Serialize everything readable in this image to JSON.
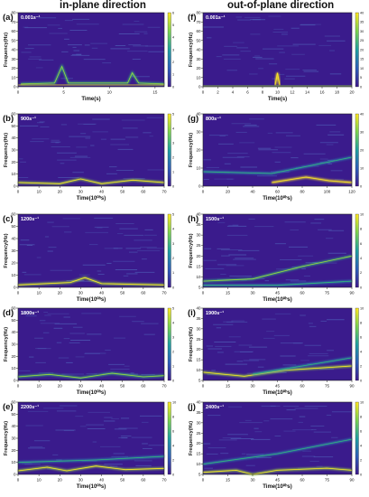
{
  "headers": {
    "left": "in-plane direction",
    "right": "out-of-plane direction"
  },
  "colors": {
    "background": "#3a1b8c",
    "low": "#440154",
    "mid": "#21908d",
    "high": "#fde725"
  },
  "chart_data": [
    {
      "id": "a",
      "type": "heatmap",
      "panel_label": "(a)",
      "annotation": "0.001s⁻¹",
      "xlabel": "Time(s)",
      "ylabel": "Frequency(Hz)",
      "xlim": [
        0,
        16
      ],
      "ylim": [
        0,
        80
      ],
      "xticks": [
        "0",
        "5",
        "10",
        "15"
      ],
      "yticks": [
        "0",
        "10",
        "20",
        "30",
        "40",
        "50",
        "60",
        "70",
        "80"
      ],
      "colorbar_ticks": [
        "0",
        "1",
        "2",
        "3",
        "4",
        "5",
        "6"
      ],
      "ridges": [
        {
          "points": [
            [
              0.3,
              3
            ],
            [
              4,
              4
            ],
            [
              4.8,
              22
            ],
            [
              5.5,
              4
            ],
            [
              12,
              4
            ],
            [
              12.5,
              15
            ],
            [
              13.2,
              4
            ],
            [
              16,
              3
            ]
          ],
          "level": 0.55
        },
        {
          "points": [
            [
              0,
              2
            ],
            [
              16,
              2
            ]
          ],
          "level": 0.9
        }
      ]
    },
    {
      "id": "f",
      "type": "heatmap",
      "panel_label": "(f)",
      "annotation": "0.001s⁻¹",
      "xlabel": "Time(s)",
      "ylabel": "Frequency(Hz)",
      "xlim": [
        0,
        20
      ],
      "ylim": [
        0,
        80
      ],
      "xticks": [
        "0",
        "2",
        "4",
        "6",
        "8",
        "10",
        "12",
        "14",
        "16",
        "18",
        "20"
      ],
      "yticks": [
        "0",
        "10",
        "20",
        "30",
        "40",
        "50",
        "60",
        "70",
        "80"
      ],
      "colorbar_ticks": [
        "0",
        "5",
        "10",
        "15",
        "20",
        "25",
        "30",
        "35",
        "40"
      ],
      "ridges": [
        {
          "points": [
            [
              9.7,
              2
            ],
            [
              10,
              15
            ],
            [
              10.3,
              2
            ]
          ],
          "level": 1.0
        },
        {
          "points": [
            [
              0,
              1
            ],
            [
              20,
              1
            ]
          ],
          "level": 0.5
        }
      ]
    },
    {
      "id": "b",
      "type": "heatmap",
      "panel_label": "(b)",
      "annotation": "900s⁻¹",
      "xlabel": "Time(10⁰ʰs)",
      "ylabel": "Frequency(Hz)",
      "xlim": [
        0,
        70
      ],
      "ylim": [
        0,
        60
      ],
      "xticks": [
        "0",
        "10",
        "20",
        "30",
        "40",
        "50",
        "60",
        "70"
      ],
      "yticks": [
        "0",
        "10",
        "20",
        "30",
        "40",
        "50",
        "60"
      ],
      "colorbar_ticks": [
        "0",
        "1",
        "2",
        "3",
        "4",
        "5"
      ],
      "ridges": [
        {
          "points": [
            [
              0,
              3
            ],
            [
              20,
              2
            ],
            [
              30,
              6
            ],
            [
              40,
              2
            ],
            [
              55,
              5
            ],
            [
              70,
              3
            ]
          ],
          "level": 0.75
        }
      ]
    },
    {
      "id": "g",
      "type": "heatmap",
      "panel_label": "(g)",
      "annotation": "800s⁻¹",
      "xlabel": "Time(10⁰ʰs)",
      "ylabel": "Frequency(Hz)",
      "xlim": [
        0,
        130
      ],
      "ylim": [
        0,
        40
      ],
      "xticks": [
        "0",
        "20",
        "40",
        "60",
        "80",
        "100",
        "120"
      ],
      "yticks": [
        "0",
        "10",
        "20",
        "30",
        "40"
      ],
      "colorbar_ticks": [
        "0",
        "10",
        "20",
        "30",
        "40"
      ],
      "ridges": [
        {
          "points": [
            [
              60,
              2
            ],
            [
              90,
              5
            ],
            [
              110,
              3
            ],
            [
              130,
              2
            ]
          ],
          "level": 1.0
        },
        {
          "points": [
            [
              0,
              8
            ],
            [
              60,
              7
            ],
            [
              130,
              16
            ]
          ],
          "level": 0.45
        }
      ]
    },
    {
      "id": "c",
      "type": "heatmap",
      "panel_label": "(c)",
      "annotation": "1200s⁻¹",
      "xlabel": "Time(10⁰ʰs)",
      "ylabel": "Frequency(Hz)",
      "xlim": [
        0,
        70
      ],
      "ylim": [
        0,
        60
      ],
      "xticks": [
        "0",
        "10",
        "20",
        "30",
        "40",
        "50",
        "60",
        "70"
      ],
      "yticks": [
        "0",
        "10",
        "20",
        "30",
        "40",
        "50",
        "60"
      ],
      "colorbar_ticks": [
        "0",
        "1",
        "2",
        "3",
        "4",
        "5"
      ],
      "ridges": [
        {
          "points": [
            [
              0,
              2
            ],
            [
              25,
              4
            ],
            [
              32,
              8
            ],
            [
              40,
              3
            ],
            [
              70,
              2
            ]
          ],
          "level": 0.7
        }
      ]
    },
    {
      "id": "h",
      "type": "heatmap",
      "panel_label": "(h)",
      "annotation": "1500s⁻¹",
      "xlabel": "Time(10⁰ʰs)",
      "ylabel": "Frequency(Hz)",
      "xlim": [
        0,
        90
      ],
      "ylim": [
        5,
        40
      ],
      "xticks": [
        "0",
        "15",
        "30",
        "45",
        "60",
        "75",
        "90"
      ],
      "yticks": [
        "5",
        "10",
        "15",
        "20",
        "25",
        "30",
        "35",
        "40"
      ],
      "colorbar_ticks": [
        "0",
        "2",
        "4",
        "6",
        "8",
        "10"
      ],
      "ridges": [
        {
          "points": [
            [
              0,
              8
            ],
            [
              30,
              9
            ],
            [
              60,
              15
            ],
            [
              90,
              20
            ]
          ],
          "level": 0.5
        },
        {
          "points": [
            [
              0,
              6
            ],
            [
              45,
              6
            ],
            [
              90,
              8
            ]
          ],
          "level": 0.45
        }
      ]
    },
    {
      "id": "d",
      "type": "heatmap",
      "panel_label": "(d)",
      "annotation": "1800s⁻¹",
      "xlabel": "Time(10⁰ʰs)",
      "ylabel": "Frequency(Hz)",
      "xlim": [
        0,
        70
      ],
      "ylim": [
        0,
        60
      ],
      "xticks": [
        "0",
        "10",
        "20",
        "30",
        "40",
        "50",
        "60",
        "70"
      ],
      "yticks": [
        "0",
        "10",
        "20",
        "30",
        "40",
        "50",
        "60"
      ],
      "colorbar_ticks": [
        "0",
        "1",
        "2",
        "3",
        "4",
        "5"
      ],
      "ridges": [
        {
          "points": [
            [
              0,
              3
            ],
            [
              15,
              5
            ],
            [
              30,
              2
            ],
            [
              45,
              6
            ],
            [
              60,
              3
            ],
            [
              70,
              4
            ]
          ],
          "level": 0.6
        }
      ]
    },
    {
      "id": "i",
      "type": "heatmap",
      "panel_label": "(i)",
      "annotation": "1900s⁻¹",
      "xlabel": "Time(10⁰ʰs)",
      "ylabel": "Frequency(Hz)",
      "xlim": [
        0,
        90
      ],
      "ylim": [
        5,
        40
      ],
      "xticks": [
        "0",
        "15",
        "30",
        "45",
        "60",
        "75",
        "90"
      ],
      "yticks": [
        "5",
        "10",
        "15",
        "20",
        "25",
        "30",
        "35",
        "40"
      ],
      "colorbar_ticks": [
        "0",
        "2",
        "4",
        "6",
        "8",
        "10"
      ],
      "ridges": [
        {
          "points": [
            [
              0,
              9
            ],
            [
              25,
              7
            ],
            [
              50,
              10
            ],
            [
              90,
              12
            ]
          ],
          "level": 0.7
        },
        {
          "points": [
            [
              30,
              8
            ],
            [
              60,
              12
            ],
            [
              90,
              16
            ]
          ],
          "level": 0.4
        }
      ]
    },
    {
      "id": "e",
      "type": "heatmap",
      "panel_label": "(e)",
      "annotation": "2200s⁻¹",
      "xlabel": "Time(10⁰ʰs)",
      "ylabel": "Frequency(Hz)",
      "xlim": [
        0,
        75
      ],
      "ylim": [
        0,
        60
      ],
      "xticks": [
        "0",
        "10",
        "20",
        "30",
        "40",
        "50",
        "60",
        "70"
      ],
      "yticks": [
        "0",
        "10",
        "20",
        "30",
        "40",
        "50",
        "60"
      ],
      "colorbar_ticks": [
        "0",
        "2",
        "4",
        "6",
        "8",
        "10"
      ],
      "ridges": [
        {
          "points": [
            [
              0,
              3
            ],
            [
              15,
              6
            ],
            [
              25,
              3
            ],
            [
              40,
              7
            ],
            [
              55,
              4
            ],
            [
              75,
              5
            ]
          ],
          "level": 0.75
        },
        {
          "points": [
            [
              0,
              10
            ],
            [
              40,
              12
            ],
            [
              75,
              15
            ]
          ],
          "level": 0.35
        }
      ]
    },
    {
      "id": "j",
      "type": "heatmap",
      "panel_label": "(j)",
      "annotation": "2400s⁻¹",
      "xlabel": "Time(10⁰ʰs)",
      "ylabel": "Frequency(Hz)",
      "xlim": [
        0,
        90
      ],
      "ylim": [
        5,
        40
      ],
      "xticks": [
        "0",
        "15",
        "30",
        "45",
        "60",
        "75",
        "90"
      ],
      "yticks": [
        "5",
        "10",
        "15",
        "20",
        "25",
        "30",
        "35",
        "40"
      ],
      "colorbar_ticks": [
        "0",
        "2",
        "4",
        "6",
        "8",
        "10"
      ],
      "ridges": [
        {
          "points": [
            [
              0,
              6
            ],
            [
              20,
              7
            ],
            [
              30,
              5
            ],
            [
              45,
              7
            ],
            [
              75,
              8
            ],
            [
              90,
              7
            ]
          ],
          "level": 0.7
        },
        {
          "points": [
            [
              0,
              10
            ],
            [
              45,
              15
            ],
            [
              90,
              22
            ]
          ],
          "level": 0.35
        }
      ]
    }
  ]
}
